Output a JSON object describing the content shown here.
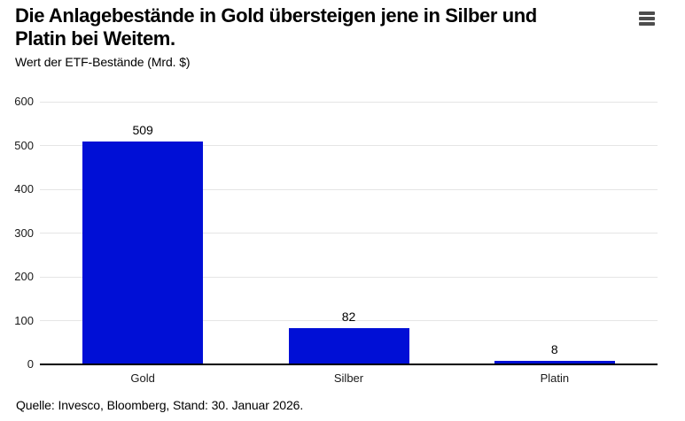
{
  "header": {
    "title_line1": "Die Anlagebestände in Gold übersteigen jene in Silber und",
    "title_line2": "Platin bei Weitem.",
    "subtitle": "Wert der ETF-Bestände (Mrd. $)",
    "menu_icon": "hamburger-menu-icon"
  },
  "footer": {
    "source": "Quelle: Invesco, Bloomberg, Stand: 30. Januar 2026."
  },
  "colors": {
    "bar": "#000FD6",
    "gridline": "#e5e5e5",
    "axis_line": "#000000",
    "menu_icon": "#4d4d4d",
    "background": "#ffffff",
    "text": "#000000"
  },
  "chart_data": {
    "type": "bar",
    "title": "Die Anlagebestände in Gold übersteigen jene in Silber und Platin bei Weitem.",
    "subtitle": "Wert der ETF-Bestände (Mrd. $)",
    "categories": [
      "Gold",
      "Silber",
      "Platin"
    ],
    "values": [
      509,
      82,
      8
    ],
    "value_labels": [
      "509",
      "82",
      "8"
    ],
    "ylim": [
      0,
      600
    ],
    "yticks": [
      0,
      100,
      200,
      300,
      400,
      500,
      600
    ],
    "ytick_labels": [
      "0",
      "100",
      "200",
      "300",
      "400",
      "500",
      "600"
    ],
    "grid": true,
    "legend": "none",
    "bar_color": "#000FD6",
    "source": "Quelle: Invesco, Bloomberg, Stand: 30. Januar 2026."
  }
}
